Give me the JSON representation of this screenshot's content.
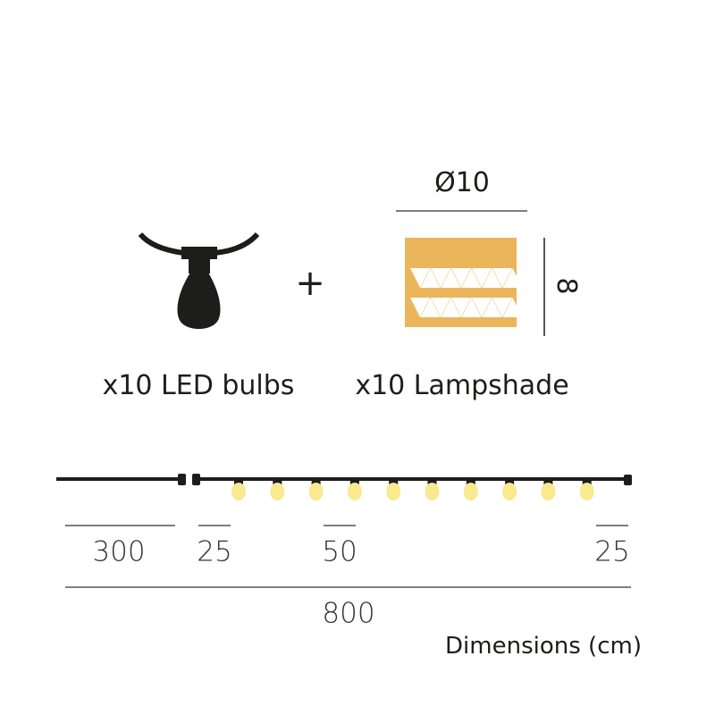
{
  "items": {
    "bulbs_label": "x10 LED bulbs",
    "plus": "+",
    "lampshade_label": "x10 Lampshade"
  },
  "lampshade": {
    "diameter_label": "Ø10",
    "height_label": "8",
    "color": "#ebb55c"
  },
  "string_lights": {
    "bulb_count": 10,
    "bulb_color": "#f9e98f",
    "cable_color": "#1d1d1b"
  },
  "dimensions": {
    "lead_cable": "300",
    "first_spacing": "25",
    "bulb_spacing": "50",
    "last_spacing": "25",
    "total_length": "800",
    "units_caption": "Dimensions (cm)"
  }
}
